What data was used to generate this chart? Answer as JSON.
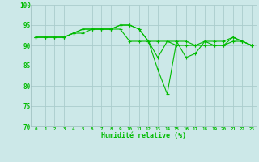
{
  "x": [
    0,
    1,
    2,
    3,
    4,
    5,
    6,
    7,
    8,
    9,
    10,
    11,
    12,
    13,
    14,
    15,
    16,
    17,
    18,
    19,
    20,
    21,
    22,
    23
  ],
  "line1": [
    92,
    92,
    92,
    92,
    93,
    93,
    94,
    94,
    94,
    94,
    91,
    91,
    91,
    91,
    91,
    90,
    90,
    90,
    90,
    90,
    90,
    91,
    91,
    90
  ],
  "line2": [
    92,
    92,
    92,
    92,
    93,
    94,
    94,
    94,
    94,
    95,
    95,
    94,
    91,
    84,
    78,
    91,
    87,
    88,
    91,
    90,
    90,
    92,
    91,
    90
  ],
  "line3": [
    92,
    92,
    92,
    92,
    93,
    94,
    94,
    94,
    94,
    95,
    95,
    94,
    91,
    87,
    91,
    91,
    91,
    90,
    91,
    91,
    91,
    92,
    91,
    90
  ],
  "background_color": "#cce8e8",
  "grid_color": "#aacccc",
  "line_color": "#00bb00",
  "xlabel": "Humidité relative (%)",
  "ylim": [
    70,
    100
  ],
  "yticks": [
    70,
    75,
    80,
    85,
    90,
    95,
    100
  ],
  "xlim": [
    -0.5,
    23.5
  ],
  "figsize": [
    3.2,
    2.0
  ],
  "dpi": 100
}
